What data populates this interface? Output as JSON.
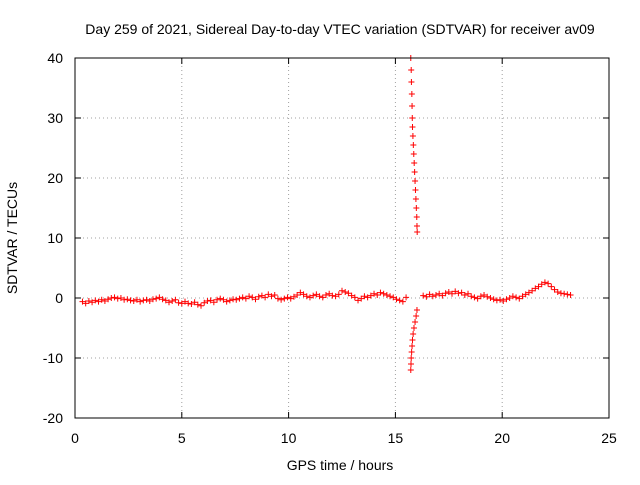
{
  "chart_data": {
    "type": "scatter",
    "title": "Day 259 of 2021, Sidereal Day-to-day VTEC variation (SDTVAR) for receiver av09",
    "xlabel": "GPS time / hours",
    "ylabel": "SDTVAR / TECUs",
    "xlim": [
      0,
      25
    ],
    "ylim": [
      -20,
      40
    ],
    "xticks": [
      0,
      5,
      10,
      15,
      20,
      25
    ],
    "yticks": [
      -20,
      -10,
      0,
      10,
      20,
      30,
      40
    ],
    "grid": true,
    "marker": "+",
    "color": "#ff0000",
    "series": [
      {
        "name": "SDTVAR",
        "points": [
          [
            0.35,
            -0.6
          ],
          [
            0.5,
            -0.9
          ],
          [
            0.65,
            -0.5
          ],
          [
            0.8,
            -0.7
          ],
          [
            0.95,
            -0.4
          ],
          [
            1.1,
            -0.6
          ],
          [
            1.25,
            -0.3
          ],
          [
            1.4,
            -0.5
          ],
          [
            1.55,
            -0.2
          ],
          [
            1.7,
            0.0
          ],
          [
            1.85,
            0.1
          ],
          [
            2.0,
            -0.1
          ],
          [
            2.15,
            0.0
          ],
          [
            2.3,
            -0.3
          ],
          [
            2.45,
            -0.2
          ],
          [
            2.6,
            -0.4
          ],
          [
            2.75,
            -0.5
          ],
          [
            2.9,
            -0.3
          ],
          [
            3.05,
            -0.6
          ],
          [
            3.2,
            -0.4
          ],
          [
            3.35,
            -0.3
          ],
          [
            3.5,
            -0.5
          ],
          [
            3.65,
            -0.2
          ],
          [
            3.8,
            -0.1
          ],
          [
            3.95,
            0.1
          ],
          [
            4.1,
            -0.2
          ],
          [
            4.25,
            -0.4
          ],
          [
            4.4,
            -0.7
          ],
          [
            4.55,
            -0.5
          ],
          [
            4.7,
            -0.3
          ],
          [
            4.85,
            -0.8
          ],
          [
            5.0,
            -0.9
          ],
          [
            5.15,
            -0.6
          ],
          [
            5.3,
            -0.9
          ],
          [
            5.45,
            -1.0
          ],
          [
            5.6,
            -0.7
          ],
          [
            5.75,
            -1.1
          ],
          [
            5.9,
            -1.3
          ],
          [
            6.05,
            -0.8
          ],
          [
            6.2,
            -0.5
          ],
          [
            6.35,
            -0.4
          ],
          [
            6.5,
            -0.7
          ],
          [
            6.65,
            -0.3
          ],
          [
            6.8,
            -0.1
          ],
          [
            6.95,
            -0.3
          ],
          [
            7.1,
            -0.6
          ],
          [
            7.25,
            -0.4
          ],
          [
            7.4,
            -0.2
          ],
          [
            7.55,
            -0.3
          ],
          [
            7.7,
            -0.1
          ],
          [
            7.85,
            0.1
          ],
          [
            8.0,
            -0.1
          ],
          [
            8.15,
            0.3
          ],
          [
            8.3,
            0.1
          ],
          [
            8.45,
            -0.2
          ],
          [
            8.6,
            0.2
          ],
          [
            8.75,
            0.4
          ],
          [
            8.9,
            0.1
          ],
          [
            9.05,
            0.6
          ],
          [
            9.2,
            0.3
          ],
          [
            9.35,
            0.5
          ],
          [
            9.5,
            -0.1
          ],
          [
            9.65,
            -0.3
          ],
          [
            9.8,
            -0.1
          ],
          [
            9.95,
            0.1
          ],
          [
            10.1,
            -0.1
          ],
          [
            10.25,
            0.2
          ],
          [
            10.4,
            0.5
          ],
          [
            10.55,
            0.9
          ],
          [
            10.7,
            0.6
          ],
          [
            10.85,
            0.3
          ],
          [
            11.0,
            0.1
          ],
          [
            11.15,
            0.4
          ],
          [
            11.3,
            0.6
          ],
          [
            11.45,
            0.3
          ],
          [
            11.6,
            0.1
          ],
          [
            11.75,
            0.5
          ],
          [
            11.9,
            0.7
          ],
          [
            12.05,
            0.4
          ],
          [
            12.2,
            0.3
          ],
          [
            12.35,
            0.6
          ],
          [
            12.5,
            1.2
          ],
          [
            12.65,
            1.0
          ],
          [
            12.8,
            0.8
          ],
          [
            12.95,
            0.4
          ],
          [
            13.1,
            0.1
          ],
          [
            13.25,
            -0.4
          ],
          [
            13.4,
            -0.1
          ],
          [
            13.55,
            0.3
          ],
          [
            13.7,
            0.1
          ],
          [
            13.85,
            0.4
          ],
          [
            14.0,
            0.7
          ],
          [
            14.15,
            0.5
          ],
          [
            14.3,
            0.9
          ],
          [
            14.45,
            0.7
          ],
          [
            14.6,
            0.5
          ],
          [
            14.75,
            0.3
          ],
          [
            14.9,
            0.1
          ],
          [
            15.05,
            -0.2
          ],
          [
            15.2,
            -0.4
          ],
          [
            15.35,
            -0.6
          ],
          [
            15.5,
            0.1
          ],
          [
            15.72,
            40.0
          ],
          [
            15.74,
            38.0
          ],
          [
            15.75,
            36.0
          ],
          [
            15.77,
            34.0
          ],
          [
            15.78,
            32.0
          ],
          [
            15.79,
            30.0
          ],
          [
            15.8,
            28.5
          ],
          [
            15.82,
            27.0
          ],
          [
            15.84,
            25.5
          ],
          [
            15.86,
            24.0
          ],
          [
            15.88,
            22.5
          ],
          [
            15.9,
            21.0
          ],
          [
            15.92,
            19.5
          ],
          [
            15.94,
            18.0
          ],
          [
            15.96,
            16.5
          ],
          [
            15.98,
            15.0
          ],
          [
            16.0,
            13.5
          ],
          [
            16.01,
            12.0
          ],
          [
            16.02,
            11.0
          ],
          [
            15.72,
            -12.0
          ],
          [
            15.73,
            -11.0
          ],
          [
            15.74,
            -10.0
          ],
          [
            15.76,
            -9.0
          ],
          [
            15.78,
            -8.0
          ],
          [
            15.8,
            -7.0
          ],
          [
            15.83,
            -6.0
          ],
          [
            15.87,
            -5.0
          ],
          [
            15.92,
            -4.0
          ],
          [
            15.97,
            -3.0
          ],
          [
            16.01,
            -2.0
          ],
          [
            16.3,
            0.4
          ],
          [
            16.45,
            0.2
          ],
          [
            16.6,
            0.6
          ],
          [
            16.75,
            0.3
          ],
          [
            16.9,
            0.5
          ],
          [
            17.05,
            0.7
          ],
          [
            17.2,
            0.4
          ],
          [
            17.35,
            0.8
          ],
          [
            17.5,
            1.0
          ],
          [
            17.65,
            0.7
          ],
          [
            17.8,
            1.1
          ],
          [
            17.95,
            0.8
          ],
          [
            18.1,
            0.9
          ],
          [
            18.25,
            0.5
          ],
          [
            18.4,
            0.7
          ],
          [
            18.55,
            0.3
          ],
          [
            18.7,
            0.1
          ],
          [
            18.85,
            -0.1
          ],
          [
            19.0,
            0.3
          ],
          [
            19.15,
            0.5
          ],
          [
            19.3,
            0.2
          ],
          [
            19.45,
            0.0
          ],
          [
            19.6,
            -0.2
          ],
          [
            19.75,
            -0.4
          ],
          [
            19.9,
            -0.3
          ],
          [
            20.05,
            -0.5
          ],
          [
            20.2,
            -0.2
          ],
          [
            20.35,
            0.0
          ],
          [
            20.5,
            0.3
          ],
          [
            20.65,
            0.1
          ],
          [
            20.8,
            -0.1
          ],
          [
            20.95,
            0.3
          ],
          [
            21.1,
            0.6
          ],
          [
            21.25,
            0.9
          ],
          [
            21.4,
            1.2
          ],
          [
            21.55,
            1.6
          ],
          [
            21.7,
            1.9
          ],
          [
            21.85,
            2.3
          ],
          [
            22.0,
            2.6
          ],
          [
            22.15,
            2.4
          ],
          [
            22.3,
            1.9
          ],
          [
            22.45,
            1.4
          ],
          [
            22.6,
            1.0
          ],
          [
            22.75,
            0.8
          ],
          [
            22.9,
            0.7
          ],
          [
            23.05,
            0.6
          ],
          [
            23.2,
            0.5
          ]
        ]
      }
    ]
  }
}
